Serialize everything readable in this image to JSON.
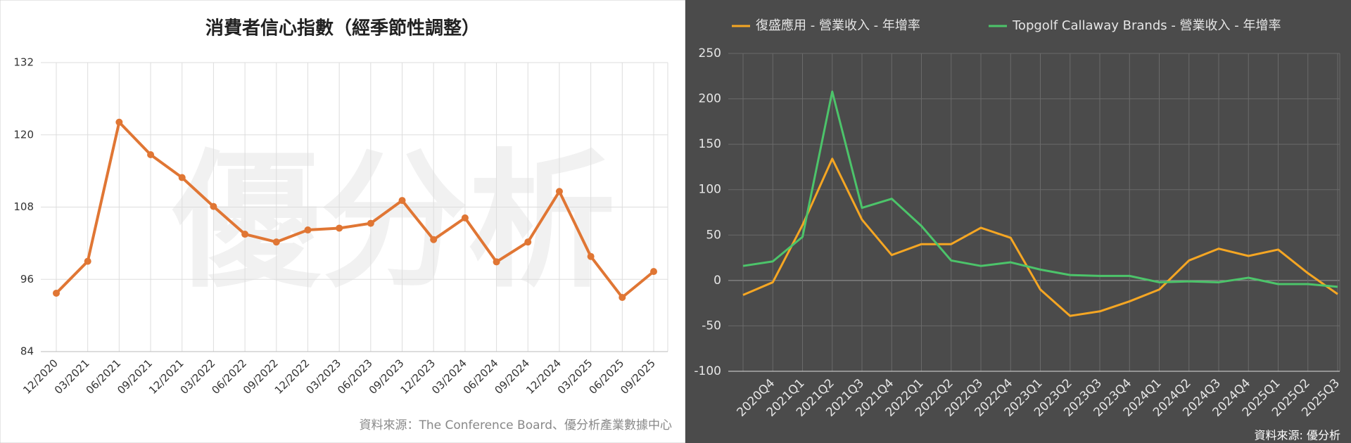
{
  "chart_data": [
    {
      "type": "line",
      "title": "消費者信心指數（經季節性調整）",
      "watermark": "優分析",
      "source": "資料來源：The Conference Board、優分析產業數據中心",
      "categories": [
        "12/2020",
        "03/2021",
        "06/2021",
        "09/2021",
        "12/2021",
        "03/2022",
        "06/2022",
        "09/2022",
        "12/2022",
        "03/2023",
        "06/2023",
        "09/2023",
        "12/2023",
        "03/2024",
        "06/2024",
        "09/2024",
        "12/2024",
        "03/2025",
        "06/2025",
        "09/2025"
      ],
      "series": [
        {
          "name": null,
          "color": "#e07634",
          "values": [
            93.7,
            99.0,
            122.1,
            116.7,
            112.9,
            108.1,
            103.5,
            102.2,
            104.2,
            104.5,
            105.3,
            109.1,
            102.6,
            106.2,
            98.9,
            102.2,
            110.6,
            99.8,
            93.0,
            97.3
          ]
        }
      ],
      "ylim": [
        84,
        132
      ],
      "yticks": [
        84,
        96,
        108,
        120,
        132
      ],
      "grid": true,
      "markers": true
    },
    {
      "type": "line",
      "source": "資料來源: 優分析",
      "legend": "top",
      "categories": [
        null,
        "2020Q4",
        "2021Q1",
        "2021Q2",
        "2021Q3",
        "2021Q4",
        "2022Q1",
        "2022Q2",
        "2022Q3",
        "2022Q4",
        "2023Q1",
        "2023Q2",
        "2023Q3",
        "2023Q4",
        "2024Q1",
        "2024Q2",
        "2024Q3",
        "2024Q4",
        "2025Q1",
        "2025Q2",
        "2025Q3"
      ],
      "series": [
        {
          "name": "復盛應用 - 營業收入 - 年增率",
          "color": "#f5a623",
          "values": [
            -16,
            -2,
            61,
            134,
            67,
            28,
            40,
            40,
            58,
            47,
            -10,
            -39,
            -34,
            -23,
            -10,
            22,
            35,
            27,
            34,
            8,
            -15
          ]
        },
        {
          "name": "Topgolf Callaway Brands - 營業收入 - 年增率",
          "color": "#4cc46a",
          "values": [
            16,
            21,
            48,
            208,
            80,
            90,
            60,
            22,
            16,
            20,
            12,
            6,
            5,
            5,
            -2,
            -1,
            -2,
            3,
            -4,
            -4,
            -7
          ]
        }
      ],
      "ylim": [
        -100,
        250
      ],
      "yticks": [
        -100,
        -50,
        0,
        50,
        100,
        150,
        200,
        250
      ],
      "grid": true,
      "markers": false
    }
  ]
}
